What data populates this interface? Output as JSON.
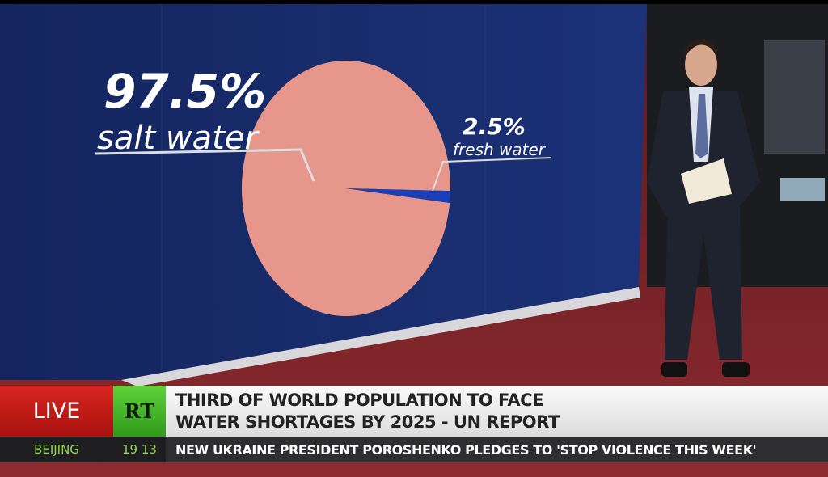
{
  "chart_data": {
    "type": "pie",
    "categories": [
      "salt water",
      "fresh water"
    ],
    "values": [
      97.5,
      2.5
    ],
    "labels": [
      "97.5%",
      "2.5%"
    ],
    "colors": [
      "#e6968a",
      "#1d3fb5"
    ]
  },
  "lower_third": {
    "live_label": "LIVE",
    "logo": "RT",
    "headline_line1": "THIRD OF WORLD POPULATION TO FACE",
    "headline_line2": "WATER SHORTAGES BY 2025 - UN REPORT",
    "city": "BEIJING",
    "time": "19 13",
    "ticker": "NEW UKRAINE PRESIDENT POROSHENKO PLEDGES TO 'STOP VIOLENCE THIS WEEK'",
    "colors": {
      "live": "#c81d16",
      "logo": "#45b82a",
      "city": "#8ed650"
    }
  }
}
